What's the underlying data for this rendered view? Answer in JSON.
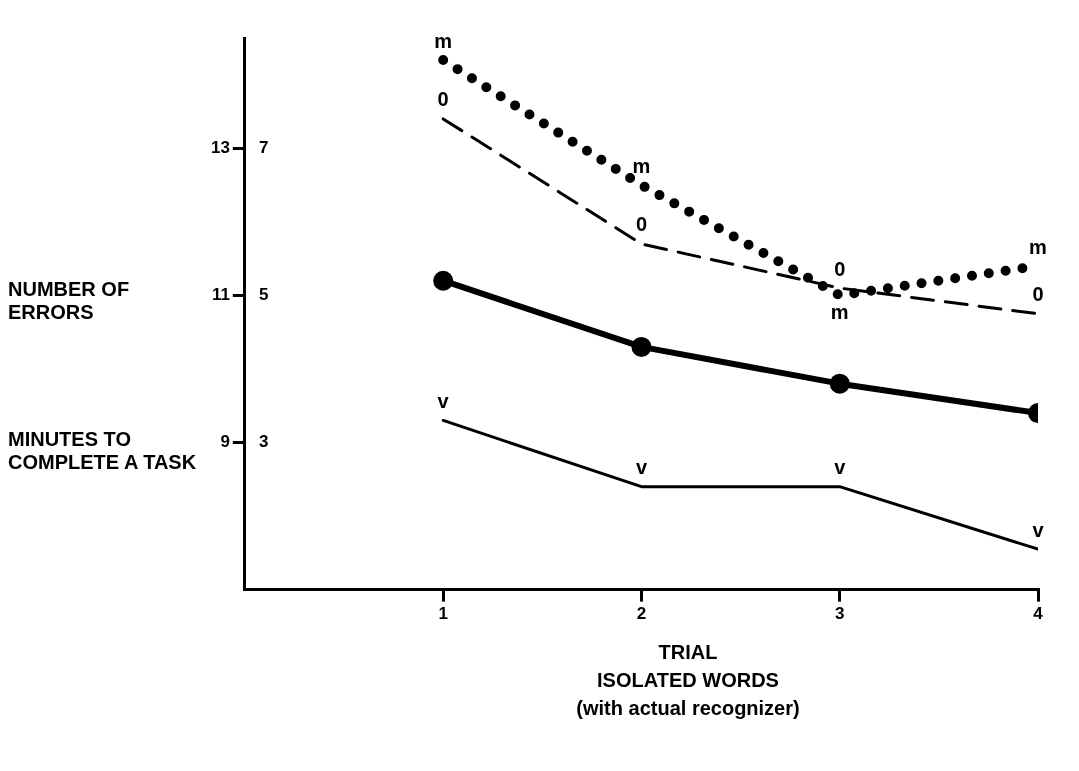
{
  "chart_data": {
    "type": "line",
    "xlabel": "TRIAL\nISOLATED WORDS\n(with actual recognizer)",
    "ylabel": "NUMBER OF ERRORS",
    "x": [
      1,
      2,
      3,
      4
    ],
    "xlim": [
      0,
      4
    ],
    "xticks": [
      1,
      2,
      3,
      4
    ],
    "ylim": [
      7,
      14.5
    ],
    "yticks": [
      9,
      11,
      13
    ],
    "y2lim": [
      1,
      8.5
    ],
    "y2ticks": [
      3,
      5,
      7
    ],
    "series": [
      {
        "color": "#000000",
        "values": [
          14.2,
          12.5,
          11.0,
          11.4
        ],
        "line_style": "dotted"
      },
      {
        "color": "#000000",
        "values": [
          13.4,
          11.7,
          11.1,
          10.75
        ],
        "line_style": "dashed"
      },
      {
        "color": "#000000",
        "values": [
          11.2,
          10.3,
          9.8,
          9.4
        ],
        "line_style": "solid",
        "marker": "circle"
      },
      {
        "color": "#000000",
        "values": [
          9.3,
          8.4,
          8.4,
          7.55
        ],
        "line_style": "solid"
      }
    ],
    "annotations": [
      "MINUTES TO COMPLETE A TASK",
      {
        "text": "m",
        "x": 1,
        "y": 14.2
      },
      {
        "text": "m",
        "x": 2,
        "y": 12.5
      },
      {
        "text": "m",
        "x": 3,
        "y": 11.0
      },
      {
        "text": "m",
        "x": 4,
        "y": 11.4
      },
      {
        "text": "0",
        "x": 1,
        "y": 13.4
      },
      {
        "text": "0",
        "x": 2,
        "y": 11.7
      },
      {
        "text": "0",
        "x": 3,
        "y": 11.1
      },
      {
        "text": "0",
        "x": 4,
        "y": 10.75
      },
      {
        "text": "v",
        "x": 1,
        "y": 9.3
      },
      {
        "text": "v",
        "x": 2,
        "y": 8.4
      },
      {
        "text": "v",
        "x": 3,
        "y": 8.4
      },
      {
        "text": "v",
        "x": 4,
        "y": 7.55
      }
    ],
    "grid": false,
    "legend": false
  }
}
